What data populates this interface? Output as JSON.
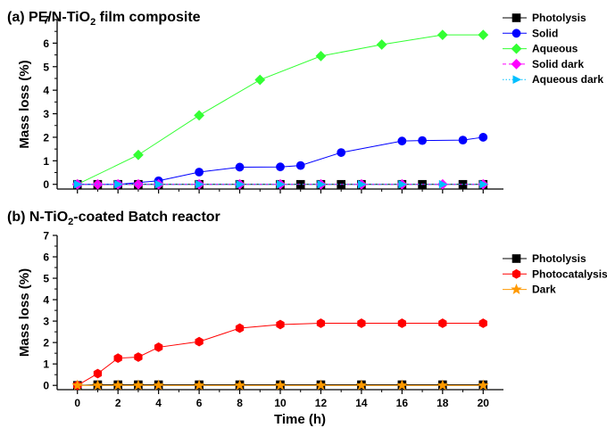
{
  "chart_data": [
    {
      "type": "line",
      "panel_label": "(a)",
      "title": {
        "main": "PE/N-TiO",
        "sub": "2",
        "rest": " film composite"
      },
      "ylabel": "Mass loss (%)",
      "xlabel": "",
      "xlim": [
        -1,
        21
      ],
      "ylim": [
        -0.2,
        7
      ],
      "yticks": [
        0,
        1,
        2,
        3,
        4,
        5,
        6,
        7
      ],
      "xticks": [
        0,
        2,
        4,
        6,
        8,
        10,
        12,
        14,
        16,
        18,
        20
      ],
      "x_tick_labels_shown": false,
      "grid": false,
      "legend_position": "top-right",
      "series": [
        {
          "name": "Photolysis",
          "color": "#000000",
          "marker": "square",
          "dash": "solid",
          "x": [
            0,
            1,
            2,
            3,
            4,
            6,
            8,
            10,
            11,
            12,
            13,
            14,
            16,
            17,
            19,
            20
          ],
          "y": [
            0,
            0,
            0,
            0,
            0,
            0,
            0,
            0,
            0,
            0,
            0,
            0,
            0,
            0,
            0,
            0
          ]
        },
        {
          "name": "Solid",
          "color": "#0000ff",
          "marker": "circle",
          "dash": "solid",
          "x": [
            0,
            2,
            4,
            6,
            8,
            10,
            11,
            13,
            16,
            17,
            19,
            20
          ],
          "y": [
            0,
            0,
            0.15,
            0.52,
            0.73,
            0.74,
            0.8,
            1.35,
            1.84,
            1.86,
            1.88,
            2.0
          ]
        },
        {
          "name": "Aqueous",
          "color": "#33ff33",
          "marker": "diamond",
          "dash": "solid",
          "x": [
            0,
            3,
            6,
            9,
            12,
            15,
            18,
            20
          ],
          "y": [
            0,
            1.25,
            2.93,
            4.44,
            5.45,
            5.94,
            6.35,
            6.35
          ]
        },
        {
          "name": "Solid dark",
          "color": "#ff00ff",
          "marker": "diamond",
          "dash": "dash",
          "x": [
            0,
            1,
            2,
            3,
            4,
            6,
            8,
            10,
            12,
            14,
            16,
            18,
            20
          ],
          "y": [
            0,
            0,
            0,
            0,
            0,
            0,
            0,
            0,
            0,
            0,
            0,
            0,
            0
          ]
        },
        {
          "name": "Aqueous dark",
          "color": "#00bfff",
          "marker": "triangle-right",
          "dash": "dot",
          "x": [
            0,
            2,
            4,
            6,
            8,
            10,
            12,
            14,
            16,
            18,
            20
          ],
          "y": [
            0,
            0,
            0,
            0,
            0,
            0,
            0,
            0,
            0,
            0,
            0
          ]
        }
      ]
    },
    {
      "type": "line",
      "panel_label": "(b)",
      "title": {
        "main": "N-TiO",
        "sub": "2",
        "rest": "-coated Batch reactor"
      },
      "ylabel": "Mass loss (%)",
      "xlabel": "Time (h)",
      "xlim": [
        -1,
        21
      ],
      "ylim": [
        -0.2,
        7
      ],
      "yticks": [
        0,
        1,
        2,
        3,
        4,
        5,
        6,
        7
      ],
      "xticks": [
        0,
        2,
        4,
        6,
        8,
        10,
        12,
        14,
        16,
        18,
        20
      ],
      "x_tick_labels_shown": true,
      "grid": false,
      "legend_position": "top-right",
      "series": [
        {
          "name": "Photolysis",
          "color": "#000000",
          "marker": "square",
          "dash": "solid",
          "x": [
            0,
            1,
            2,
            3,
            4,
            6,
            8,
            10,
            12,
            14,
            16,
            18,
            20
          ],
          "y": [
            0,
            0.03,
            0.03,
            0.03,
            0.03,
            0.03,
            0.03,
            0.03,
            0.03,
            0.03,
            0.03,
            0.03,
            0.03
          ]
        },
        {
          "name": "Photocatalysis",
          "color": "#ff0000",
          "marker": "hexagon",
          "dash": "solid",
          "x": [
            0,
            1,
            2,
            3,
            4,
            6,
            8,
            10,
            12,
            14,
            16,
            18,
            20
          ],
          "y": [
            0,
            0.55,
            1.27,
            1.32,
            1.78,
            2.04,
            2.67,
            2.84,
            2.9,
            2.9,
            2.9,
            2.9,
            2.9
          ]
        },
        {
          "name": "Dark",
          "color": "#ff9900",
          "marker": "star",
          "dash": "solid",
          "x": [
            0,
            1,
            2,
            3,
            4,
            6,
            8,
            10,
            12,
            14,
            16,
            18,
            20
          ],
          "y": [
            0,
            0,
            0,
            0,
            0,
            0,
            0,
            0,
            0,
            0,
            0,
            0,
            0
          ]
        }
      ]
    }
  ]
}
